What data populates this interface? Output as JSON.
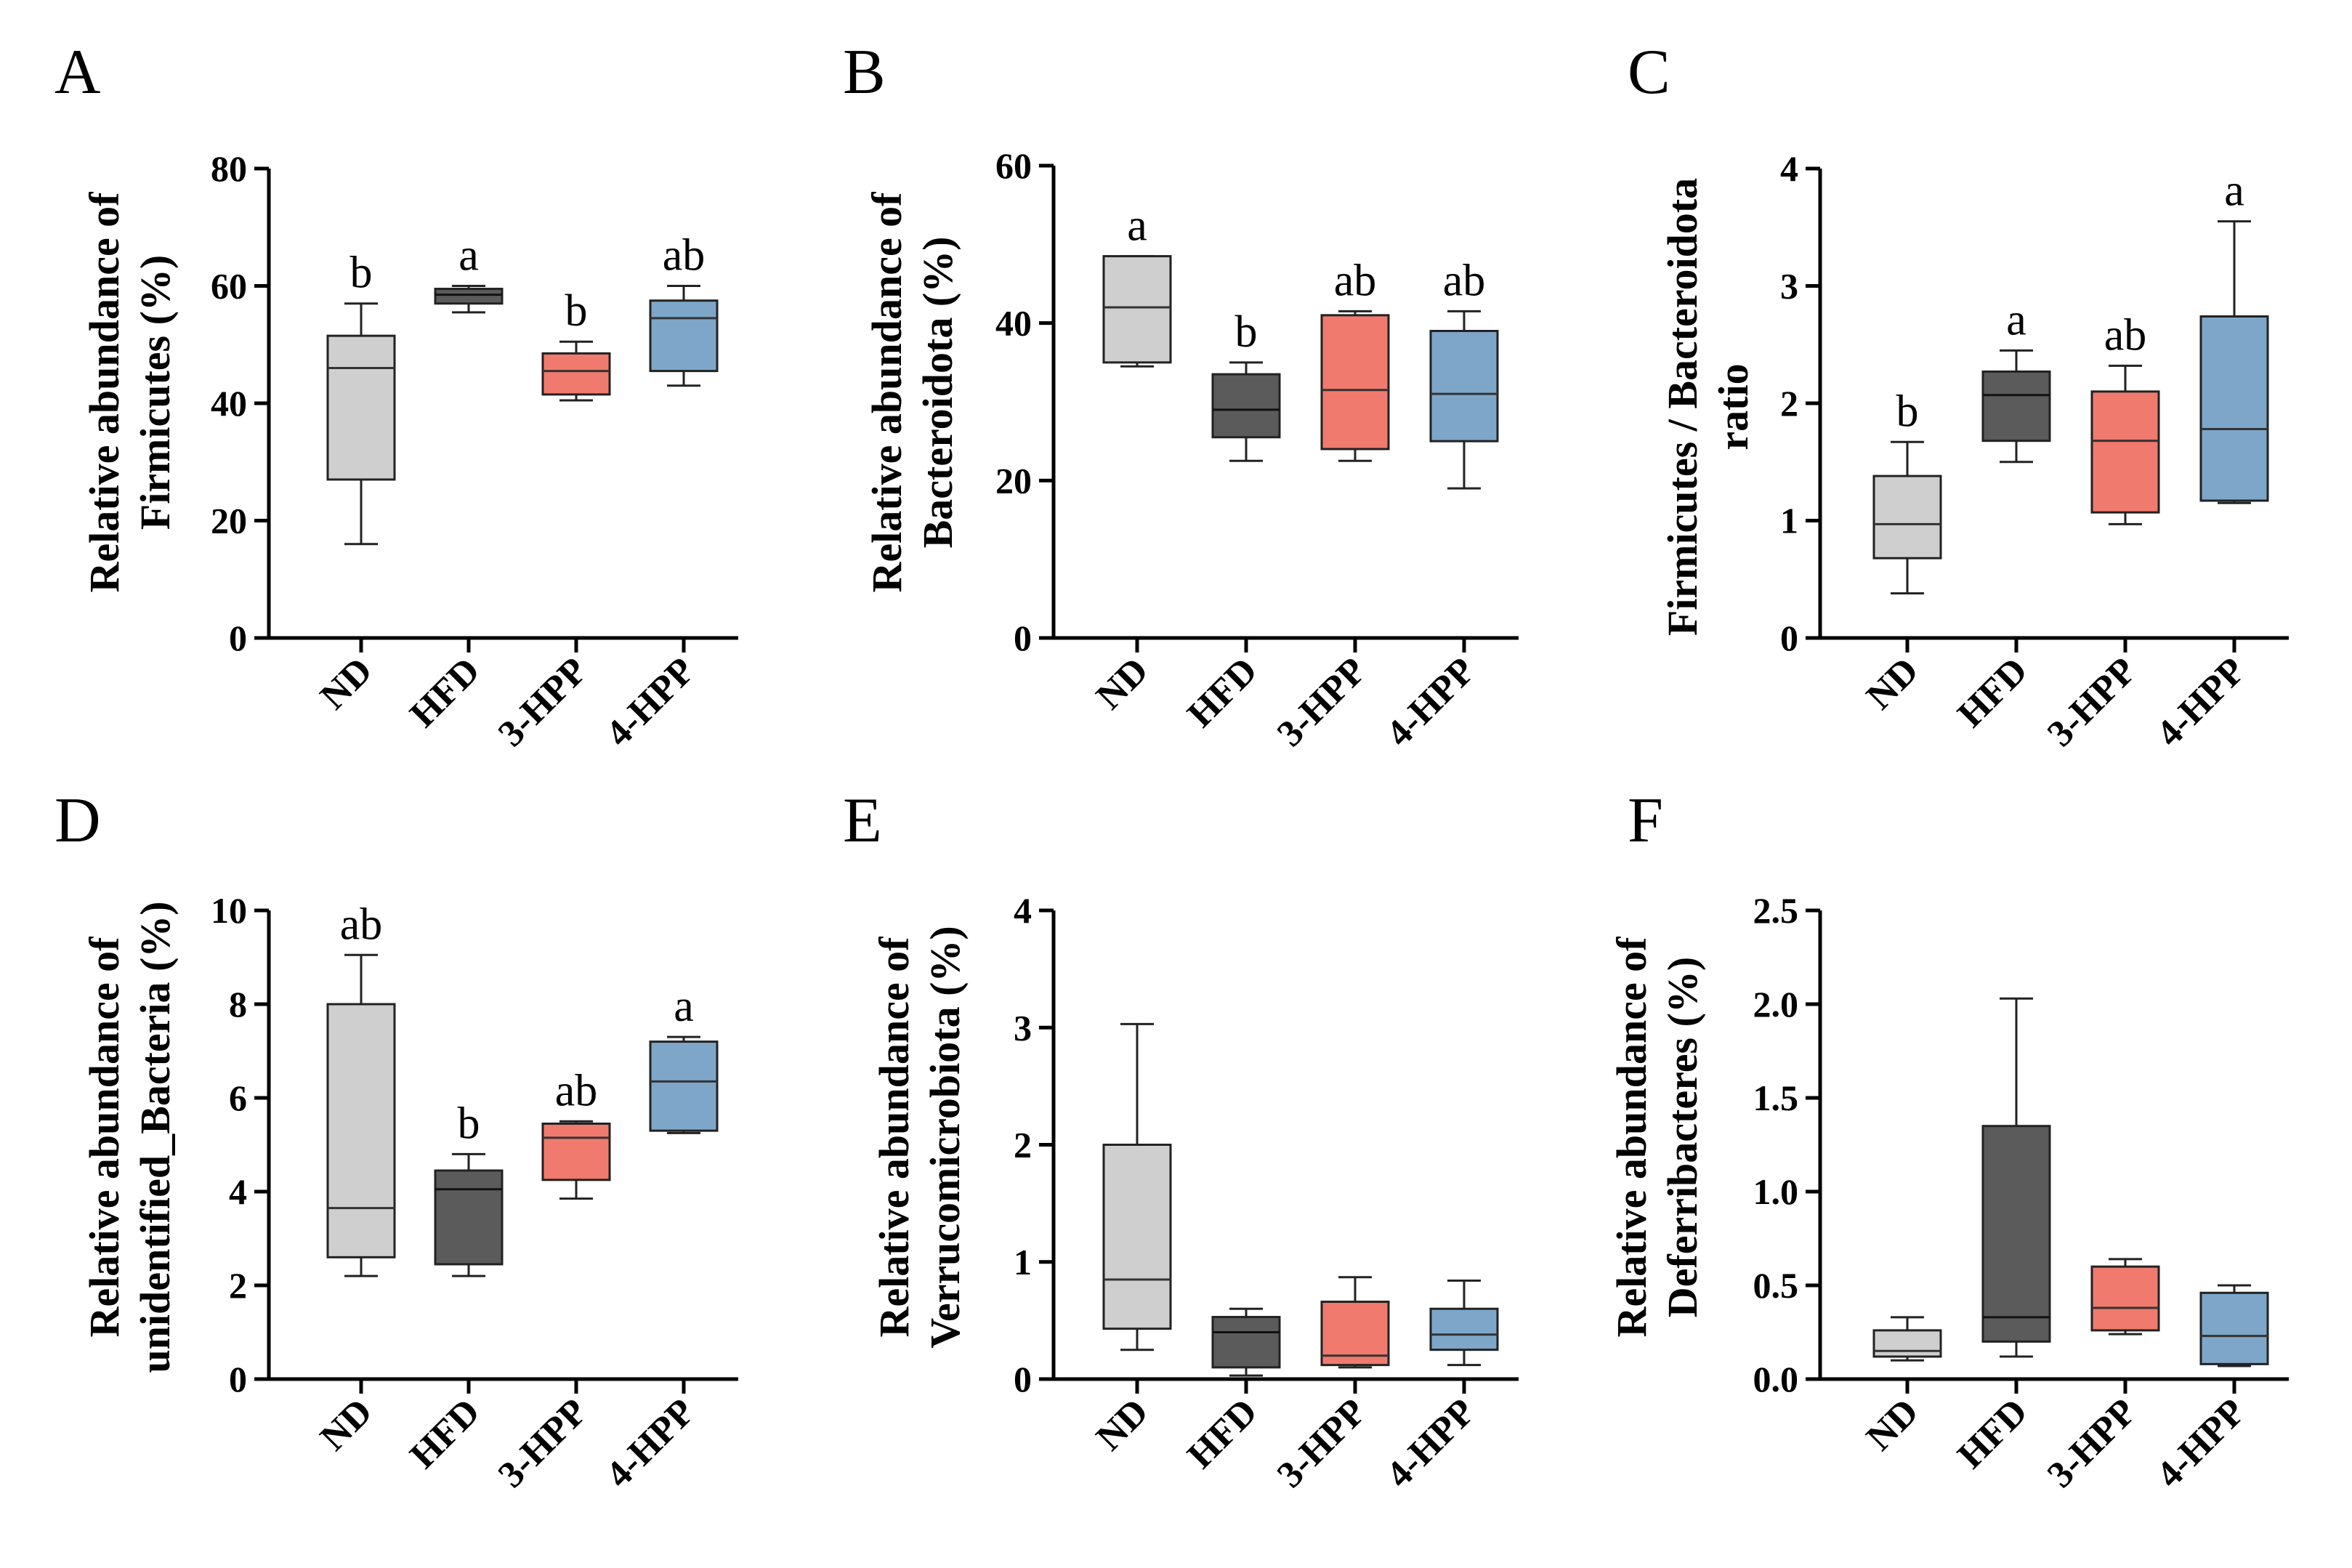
{
  "colors": {
    "ND": "#cfcfcf",
    "HFD": "#5b5b5b",
    "3-HPP": "#f07a6e",
    "4-HPP": "#7ea6c8",
    "axis": "#000000"
  },
  "chart_data": [
    {
      "type": "box",
      "panel": "A",
      "ylabel_lines": [
        "Relative abundance of",
        "Firmicutes (%)"
      ],
      "categories": [
        "ND",
        "HFD",
        "3-HPP",
        "4-HPP"
      ],
      "ylim": [
        0,
        80
      ],
      "yticks": [
        0,
        20,
        40,
        60,
        80
      ],
      "ytick_labels": [
        "0",
        "20",
        "40",
        "60",
        "80"
      ],
      "boxes": [
        {
          "group": "ND",
          "min": 16,
          "q1": 27,
          "median": 46,
          "q3": 51.5,
          "max": 57,
          "letter": "b"
        },
        {
          "group": "HFD",
          "min": 55.5,
          "q1": 57,
          "median": 58.5,
          "q3": 59.5,
          "max": 60,
          "letter": "a"
        },
        {
          "group": "3-HPP",
          "min": 40.5,
          "q1": 41.5,
          "median": 45.5,
          "q3": 48.5,
          "max": 50.5,
          "letter": "b"
        },
        {
          "group": "4-HPP",
          "min": 43,
          "q1": 45.5,
          "median": 54.5,
          "q3": 57.5,
          "max": 60,
          "letter": "ab"
        }
      ]
    },
    {
      "type": "box",
      "panel": "B",
      "ylabel_lines": [
        "Relative abundance of",
        "Bacteroidota (%)"
      ],
      "categories": [
        "ND",
        "HFD",
        "3-HPP",
        "4-HPP"
      ],
      "ylim": [
        0,
        60
      ],
      "yticks": [
        0,
        20,
        40,
        60
      ],
      "ytick_labels": [
        "0",
        "20",
        "40",
        "60"
      ],
      "boxes": [
        {
          "group": "ND",
          "min": 34.5,
          "q1": 35,
          "median": 42,
          "q3": 48.5,
          "max": 48.5,
          "letter": "a"
        },
        {
          "group": "HFD",
          "min": 22.5,
          "q1": 25.5,
          "median": 29,
          "q3": 33.5,
          "max": 35,
          "letter": "b"
        },
        {
          "group": "3-HPP",
          "min": 22.5,
          "q1": 24,
          "median": 31.5,
          "q3": 41,
          "max": 41.5,
          "letter": "ab"
        },
        {
          "group": "4-HPP",
          "min": 19,
          "q1": 25,
          "median": 31,
          "q3": 39,
          "max": 41.5,
          "letter": "ab"
        }
      ]
    },
    {
      "type": "box",
      "panel": "C",
      "ylabel_lines": [
        "Firmicutes / Bacteroidota",
        "ratio"
      ],
      "categories": [
        "ND",
        "HFD",
        "3-HPP",
        "4-HPP"
      ],
      "ylim": [
        0,
        4
      ],
      "yticks": [
        0,
        1,
        2,
        3,
        4
      ],
      "ytick_labels": [
        "0",
        "1",
        "2",
        "3",
        "4"
      ],
      "boxes": [
        {
          "group": "ND",
          "min": 0.38,
          "q1": 0.68,
          "median": 0.97,
          "q3": 1.38,
          "max": 1.67,
          "letter": "b"
        },
        {
          "group": "HFD",
          "min": 1.5,
          "q1": 1.68,
          "median": 2.07,
          "q3": 2.27,
          "max": 2.45,
          "letter": "a"
        },
        {
          "group": "3-HPP",
          "min": 0.97,
          "q1": 1.07,
          "median": 1.68,
          "q3": 2.1,
          "max": 2.32,
          "letter": "ab"
        },
        {
          "group": "4-HPP",
          "min": 1.15,
          "q1": 1.17,
          "median": 1.78,
          "q3": 2.74,
          "max": 3.55,
          "letter": "a"
        }
      ]
    },
    {
      "type": "box",
      "panel": "D",
      "ylabel_lines": [
        "Relative abundance of",
        "unidentified_Bacteria (%)"
      ],
      "categories": [
        "ND",
        "HFD",
        "3-HPP",
        "4-HPP"
      ],
      "ylim": [
        0,
        10
      ],
      "yticks": [
        0,
        2,
        4,
        6,
        8,
        10
      ],
      "ytick_labels": [
        "0",
        "2",
        "4",
        "6",
        "8",
        "10"
      ],
      "boxes": [
        {
          "group": "ND",
          "min": 2.2,
          "q1": 2.6,
          "median": 3.65,
          "q3": 8.0,
          "max": 9.05,
          "letter": "ab"
        },
        {
          "group": "HFD",
          "min": 2.2,
          "q1": 2.45,
          "median": 4.05,
          "q3": 4.45,
          "max": 4.8,
          "letter": "b"
        },
        {
          "group": "3-HPP",
          "min": 3.85,
          "q1": 4.25,
          "median": 5.15,
          "q3": 5.45,
          "max": 5.5,
          "letter": "ab"
        },
        {
          "group": "4-HPP",
          "min": 5.25,
          "q1": 5.3,
          "median": 6.35,
          "q3": 7.2,
          "max": 7.3,
          "letter": "a"
        }
      ]
    },
    {
      "type": "box",
      "panel": "E",
      "ylabel_lines": [
        "Relative abundance of",
        "Verrucomicrobiota (%)"
      ],
      "categories": [
        "ND",
        "HFD",
        "3-HPP",
        "4-HPP"
      ],
      "ylim": [
        0,
        4
      ],
      "yticks": [
        0,
        1,
        2,
        3,
        4
      ],
      "ytick_labels": [
        "0",
        "1",
        "2",
        "3",
        "4"
      ],
      "boxes": [
        {
          "group": "ND",
          "min": 0.25,
          "q1": 0.43,
          "median": 0.85,
          "q3": 2.0,
          "max": 3.03,
          "letter": ""
        },
        {
          "group": "HFD",
          "min": 0.03,
          "q1": 0.1,
          "median": 0.4,
          "q3": 0.53,
          "max": 0.6,
          "letter": ""
        },
        {
          "group": "3-HPP",
          "min": 0.1,
          "q1": 0.12,
          "median": 0.2,
          "q3": 0.66,
          "max": 0.87,
          "letter": ""
        },
        {
          "group": "4-HPP",
          "min": 0.12,
          "q1": 0.25,
          "median": 0.38,
          "q3": 0.6,
          "max": 0.84,
          "letter": ""
        }
      ]
    },
    {
      "type": "box",
      "panel": "F",
      "ylabel_lines": [
        "Relative abundance of",
        "Deferribacteres (%)"
      ],
      "categories": [
        "ND",
        "HFD",
        "3-HPP",
        "4-HPP"
      ],
      "ylim": [
        0,
        2.5
      ],
      "yticks": [
        0,
        0.5,
        1.0,
        1.5,
        2.0,
        2.5
      ],
      "ytick_labels": [
        "0.0",
        "0.5",
        "1.0",
        "1.5",
        "2.0",
        "2.5"
      ],
      "boxes": [
        {
          "group": "ND",
          "min": 0.1,
          "q1": 0.12,
          "median": 0.15,
          "q3": 0.26,
          "max": 0.33,
          "letter": ""
        },
        {
          "group": "HFD",
          "min": 0.12,
          "q1": 0.2,
          "median": 0.33,
          "q3": 1.35,
          "max": 2.03,
          "letter": ""
        },
        {
          "group": "3-HPP",
          "min": 0.24,
          "q1": 0.26,
          "median": 0.38,
          "q3": 0.6,
          "max": 0.64,
          "letter": ""
        },
        {
          "group": "4-HPP",
          "min": 0.07,
          "q1": 0.08,
          "median": 0.23,
          "q3": 0.46,
          "max": 0.5,
          "letter": ""
        }
      ]
    }
  ]
}
